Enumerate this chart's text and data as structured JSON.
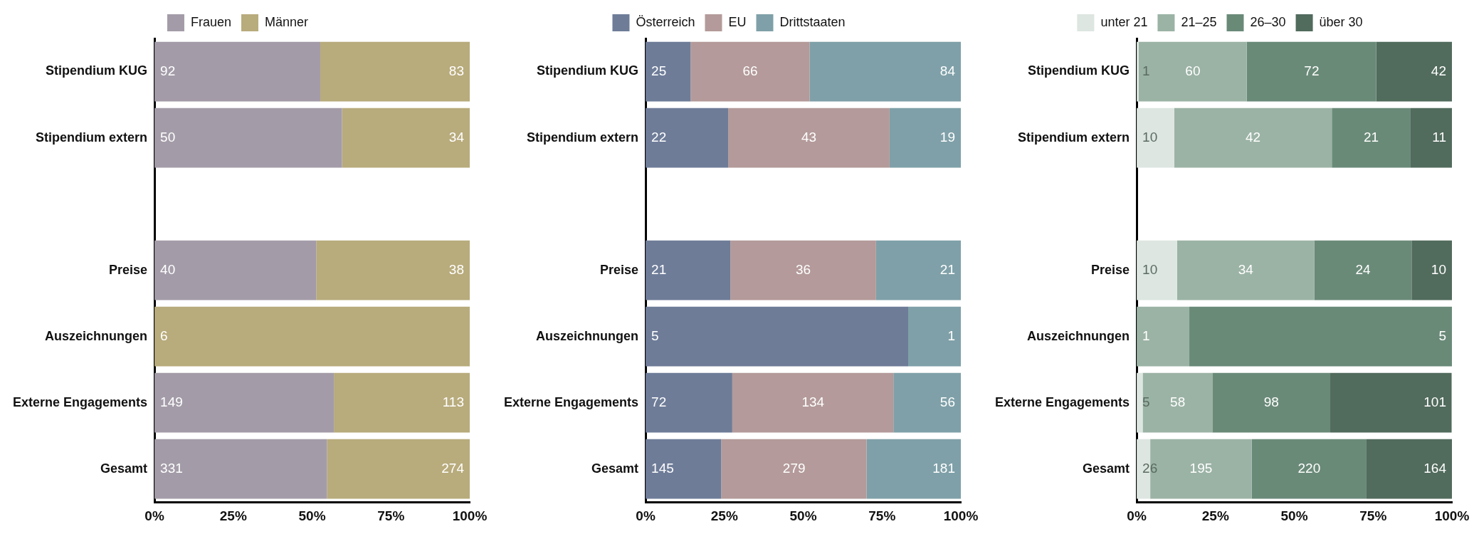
{
  "chart_data": [
    {
      "type": "bar",
      "orientation": "horizontal",
      "stacked": true,
      "legend": "top",
      "grid": false,
      "categories": [
        "Stipendium KUG",
        "Stipendium extern",
        null,
        "Preise",
        "Auszeichnungen",
        "Externe Engagements",
        "Gesamt"
      ],
      "xlim": [
        0,
        100
      ],
      "xticks": [
        {
          "value": 0,
          "label": "0%"
        },
        {
          "value": 25,
          "label": "25%"
        },
        {
          "value": 50,
          "label": "50%"
        },
        {
          "value": 75,
          "label": "75%"
        },
        {
          "value": 100,
          "label": "100%"
        }
      ],
      "series": [
        {
          "name": "Frauen",
          "color": "#a39ca8",
          "values": [
            52.6,
            59.5,
            null,
            51.3,
            0,
            56.9,
            54.7
          ]
        },
        {
          "name": "Männer",
          "color": "#b8ab7c",
          "values": [
            47.4,
            40.5,
            null,
            48.7,
            100,
            43.1,
            45.3
          ]
        }
      ],
      "annotations": [
        {
          "text": "92",
          "x": 0,
          "y": "Stipendium KUG"
        },
        {
          "text": "83",
          "x": 100,
          "y": "Stipendium KUG"
        },
        {
          "text": "50",
          "x": 0,
          "y": "Stipendium extern"
        },
        {
          "text": "34",
          "x": 100,
          "y": "Stipendium extern"
        },
        {
          "text": "40",
          "x": 0,
          "y": "Preise"
        },
        {
          "text": "38",
          "x": 100,
          "y": "Preise"
        },
        {
          "text": "6",
          "x": 0,
          "y": "Auszeichnungen"
        },
        {
          "text": "149",
          "x": 0,
          "y": "Externe Engagements"
        },
        {
          "text": "113",
          "x": 100,
          "y": "Externe Engagements"
        },
        {
          "text": "331",
          "x": 0,
          "y": "Gesamt"
        },
        {
          "text": "274",
          "x": 100,
          "y": "Gesamt"
        }
      ]
    },
    {
      "type": "bar",
      "orientation": "horizontal",
      "stacked": true,
      "legend": "top",
      "grid": false,
      "categories": [
        "Stipendium KUG",
        "Stipendium extern",
        null,
        "Preise",
        "Auszeichnungen",
        "Externe Engagements",
        "Gesamt"
      ],
      "xlim": [
        0,
        100
      ],
      "xticks": [
        {
          "value": 0,
          "label": "0%"
        },
        {
          "value": 25,
          "label": "25%"
        },
        {
          "value": 50,
          "label": "50%"
        },
        {
          "value": 75,
          "label": "75%"
        },
        {
          "value": 100,
          "label": "100%"
        }
      ],
      "series": [
        {
          "name": "Österreich",
          "color": "#6e7c98",
          "values": [
            14.3,
            26.2,
            null,
            26.9,
            83.3,
            27.5,
            24.0
          ]
        },
        {
          "name": "EU",
          "color": "#b49a9a",
          "values": [
            37.7,
            51.2,
            null,
            46.2,
            0,
            51.1,
            46.1
          ]
        },
        {
          "name": "Drittstaaten",
          "color": "#7fa0a8",
          "values": [
            48.0,
            22.6,
            null,
            26.9,
            16.7,
            21.4,
            29.9
          ]
        }
      ],
      "annotations": [
        {
          "text": "25",
          "x": 0,
          "y": "Stipendium KUG"
        },
        {
          "text": "66",
          "x": 33.2,
          "y": "Stipendium KUG"
        },
        {
          "text": "84",
          "x": 100,
          "y": "Stipendium KUG"
        },
        {
          "text": "22",
          "x": 0,
          "y": "Stipendium extern"
        },
        {
          "text": "43",
          "x": 51.8,
          "y": "Stipendium extern"
        },
        {
          "text": "19",
          "x": 100,
          "y": "Stipendium extern"
        },
        {
          "text": "21",
          "x": 0,
          "y": "Preise"
        },
        {
          "text": "36",
          "x": 50.0,
          "y": "Preise"
        },
        {
          "text": "21",
          "x": 100,
          "y": "Preise"
        },
        {
          "text": "5",
          "x": 0,
          "y": "Auszeichnungen"
        },
        {
          "text": "1",
          "x": 100,
          "y": "Auszeichnungen"
        },
        {
          "text": "72",
          "x": 0,
          "y": "Externe Engagements"
        },
        {
          "text": "134",
          "x": 53.1,
          "y": "Externe Engagements"
        },
        {
          "text": "56",
          "x": 100,
          "y": "Externe Engagements"
        },
        {
          "text": "145",
          "x": 0,
          "y": "Gesamt"
        },
        {
          "text": "279",
          "x": 47.1,
          "y": "Gesamt"
        },
        {
          "text": "181",
          "x": 100,
          "y": "Gesamt"
        }
      ]
    },
    {
      "type": "bar",
      "orientation": "horizontal",
      "stacked": true,
      "legend": "top",
      "grid": false,
      "categories": [
        "Stipendium KUG",
        "Stipendium extern",
        null,
        "Preise",
        "Auszeichnungen",
        "Externe Engagements",
        "Gesamt"
      ],
      "xlim": [
        0,
        100
      ],
      "xticks": [
        {
          "value": 0,
          "label": "0%"
        },
        {
          "value": 25,
          "label": "25%"
        },
        {
          "value": 50,
          "label": "50%"
        },
        {
          "value": 75,
          "label": "75%"
        },
        {
          "value": 100,
          "label": "100%"
        }
      ],
      "series": [
        {
          "name": "unter 21",
          "color": "#dde6e1",
          "values": [
            0.6,
            11.9,
            null,
            12.8,
            0,
            1.9,
            4.3
          ]
        },
        {
          "name": "21–25",
          "color": "#9bb3a5",
          "values": [
            34.3,
            50.0,
            null,
            43.6,
            16.7,
            22.1,
            32.2
          ]
        },
        {
          "name": "26–30",
          "color": "#6a8a78",
          "values": [
            41.1,
            25.0,
            null,
            30.8,
            83.3,
            37.4,
            36.4
          ]
        },
        {
          "name": "über 30",
          "color": "#516b5d",
          "values": [
            24.0,
            13.1,
            null,
            12.8,
            0,
            38.5,
            27.1
          ]
        }
      ],
      "annotations": [
        {
          "text": "1",
          "x": 0,
          "y": "Stipendium KUG"
        },
        {
          "text": "60",
          "x": 17.8,
          "y": "Stipendium KUG"
        },
        {
          "text": "72",
          "x": 55.5,
          "y": "Stipendium KUG"
        },
        {
          "text": "42",
          "x": 100,
          "y": "Stipendium KUG"
        },
        {
          "text": "10",
          "x": 0,
          "y": "Stipendium extern"
        },
        {
          "text": "42",
          "x": 36.9,
          "y": "Stipendium extern"
        },
        {
          "text": "21",
          "x": 74.4,
          "y": "Stipendium extern"
        },
        {
          "text": "11",
          "x": 100,
          "y": "Stipendium extern"
        },
        {
          "text": "10",
          "x": 0,
          "y": "Preise"
        },
        {
          "text": "34",
          "x": 34.6,
          "y": "Preise"
        },
        {
          "text": "24",
          "x": 71.8,
          "y": "Preise"
        },
        {
          "text": "10",
          "x": 100,
          "y": "Preise"
        },
        {
          "text": "1",
          "x": 0,
          "y": "Auszeichnungen"
        },
        {
          "text": "5",
          "x": 100,
          "y": "Auszeichnungen"
        },
        {
          "text": "5",
          "x": 0,
          "y": "Externe Engagements"
        },
        {
          "text": "58",
          "x": 13.0,
          "y": "Externe Engagements"
        },
        {
          "text": "98",
          "x": 42.7,
          "y": "Externe Engagements"
        },
        {
          "text": "101",
          "x": 100,
          "y": "Externe Engagements"
        },
        {
          "text": "26",
          "x": 0,
          "y": "Gesamt"
        },
        {
          "text": "195",
          "x": 20.4,
          "y": "Gesamt"
        },
        {
          "text": "220",
          "x": 54.7,
          "y": "Gesamt"
        },
        {
          "text": "164",
          "x": 100,
          "y": "Gesamt"
        }
      ]
    }
  ]
}
